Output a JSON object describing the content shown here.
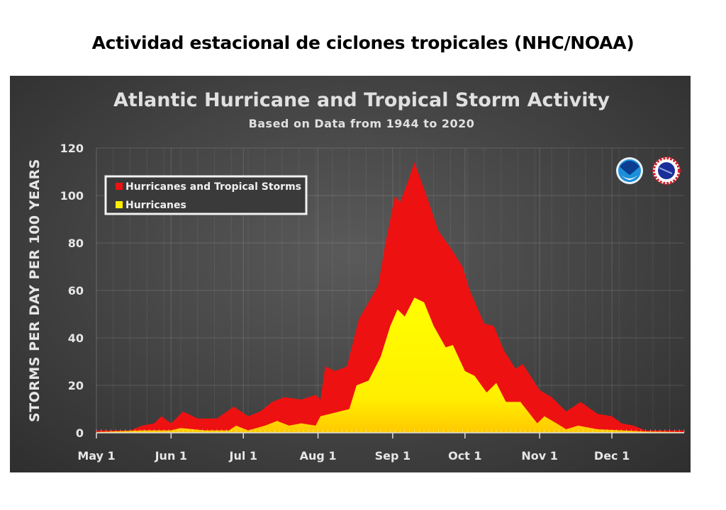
{
  "page": {
    "title": "Actividad estacional de ciclones tropicales (NHC/NOAA)"
  },
  "chart_data": {
    "type": "area",
    "title": "Atlantic Hurricane and Tropical Storm Activity",
    "subtitle": "Based on Data from 1944 to 2020",
    "ylabel": "STORMS PER DAY PER 100 YEARS",
    "xlabel": "",
    "ylim": [
      0,
      120
    ],
    "yticks": [
      0,
      20,
      40,
      60,
      80,
      100,
      120
    ],
    "xlim": [
      "05-01",
      "12-31"
    ],
    "xticks": [
      {
        "date": "05-01",
        "label": "May 1"
      },
      {
        "date": "06-01",
        "label": "Jun 1"
      },
      {
        "date": "07-01",
        "label": "Jul 1"
      },
      {
        "date": "08-01",
        "label": "Aug 1"
      },
      {
        "date": "09-01",
        "label": "Sep 1"
      },
      {
        "date": "10-01",
        "label": "Oct 1"
      },
      {
        "date": "11-01",
        "label": "Nov 1"
      },
      {
        "date": "12-01",
        "label": "Dec 1"
      }
    ],
    "grid": true,
    "legend_position": "top-left",
    "background": "dark gray",
    "series": [
      {
        "name": "Hurricanes and Tropical Storms",
        "color": "#ee1111",
        "points": [
          [
            "05-01",
            1
          ],
          [
            "05-15",
            1
          ],
          [
            "05-20",
            3
          ],
          [
            "05-25",
            4
          ],
          [
            "05-28",
            7
          ],
          [
            "06-01",
            4
          ],
          [
            "06-06",
            9
          ],
          [
            "06-12",
            6
          ],
          [
            "06-20",
            6
          ],
          [
            "06-27",
            11
          ],
          [
            "07-03",
            7
          ],
          [
            "07-08",
            9
          ],
          [
            "07-13",
            13
          ],
          [
            "07-18",
            15
          ],
          [
            "07-25",
            14
          ],
          [
            "07-31",
            16
          ],
          [
            "08-02",
            14
          ],
          [
            "08-04",
            28
          ],
          [
            "08-08",
            26
          ],
          [
            "08-13",
            28
          ],
          [
            "08-18",
            48
          ],
          [
            "08-22",
            55
          ],
          [
            "08-26",
            62
          ],
          [
            "08-29",
            80
          ],
          [
            "09-02",
            100
          ],
          [
            "09-04",
            97
          ],
          [
            "09-07",
            105
          ],
          [
            "09-10",
            114
          ],
          [
            "09-15",
            100
          ],
          [
            "09-20",
            85
          ],
          [
            "09-25",
            78
          ],
          [
            "09-30",
            70
          ],
          [
            "10-03",
            60
          ],
          [
            "10-09",
            46
          ],
          [
            "10-13",
            45
          ],
          [
            "10-17",
            35
          ],
          [
            "10-22",
            27
          ],
          [
            "10-25",
            29
          ],
          [
            "11-01",
            18
          ],
          [
            "11-06",
            15
          ],
          [
            "11-12",
            9
          ],
          [
            "11-18",
            13
          ],
          [
            "11-25",
            8
          ],
          [
            "12-01",
            7
          ],
          [
            "12-05",
            4
          ],
          [
            "12-10",
            3
          ],
          [
            "12-15",
            1
          ],
          [
            "12-31",
            1
          ]
        ]
      },
      {
        "name": "Hurricanes",
        "color": "#ffee00",
        "points": [
          [
            "05-01",
            0.3
          ],
          [
            "05-20",
            1
          ],
          [
            "06-01",
            1
          ],
          [
            "06-05",
            2
          ],
          [
            "06-15",
            1
          ],
          [
            "06-25",
            1
          ],
          [
            "06-28",
            3
          ],
          [
            "07-03",
            1
          ],
          [
            "07-10",
            3
          ],
          [
            "07-15",
            5
          ],
          [
            "07-20",
            3
          ],
          [
            "07-25",
            4
          ],
          [
            "07-31",
            3
          ],
          [
            "08-02",
            7
          ],
          [
            "08-10",
            9
          ],
          [
            "08-14",
            10
          ],
          [
            "08-17",
            20
          ],
          [
            "08-22",
            22
          ],
          [
            "08-27",
            32
          ],
          [
            "08-31",
            45
          ],
          [
            "09-03",
            52
          ],
          [
            "09-06",
            49
          ],
          [
            "09-10",
            57
          ],
          [
            "09-14",
            55
          ],
          [
            "09-18",
            45
          ],
          [
            "09-23",
            36
          ],
          [
            "09-26",
            37
          ],
          [
            "10-01",
            26
          ],
          [
            "10-05",
            24
          ],
          [
            "10-10",
            17
          ],
          [
            "10-14",
            21
          ],
          [
            "10-18",
            13
          ],
          [
            "10-24",
            13
          ],
          [
            "10-31",
            4
          ],
          [
            "11-03",
            7
          ],
          [
            "11-08",
            4
          ],
          [
            "11-12",
            1.5
          ],
          [
            "11-17",
            3
          ],
          [
            "11-25",
            1.5
          ],
          [
            "12-05",
            1
          ],
          [
            "12-15",
            0.5
          ],
          [
            "12-31",
            0.3
          ]
        ]
      }
    ],
    "logos": [
      "NOAA",
      "National Weather Service"
    ]
  }
}
